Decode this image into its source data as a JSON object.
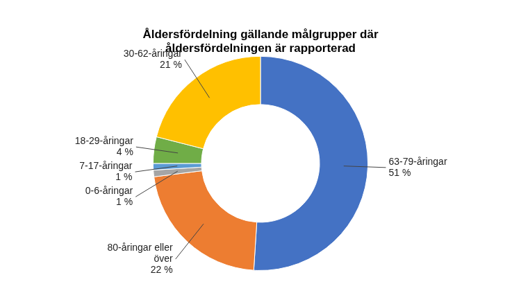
{
  "chart_data": {
    "type": "doughnut",
    "title": "Åldersfördelning gällande målgrupper där åldersfördelningen är rapporterad",
    "categories": [
      "63-79-åringar",
      "80-åringar eller över",
      "0-6-åringar",
      "7-17-åringar",
      "18-29-åringar",
      "30-62-åringar"
    ],
    "values": [
      51,
      22,
      1,
      1,
      4,
      21
    ],
    "value_labels": [
      "51 %",
      "22 %",
      "1 %",
      "1 %",
      "4 %",
      "21 %"
    ],
    "colors": [
      "#4472c4",
      "#ed7d31",
      "#a5a5a5",
      "#5b9bd5",
      "#70ad47",
      "#ffc000"
    ],
    "data_labels": true
  }
}
